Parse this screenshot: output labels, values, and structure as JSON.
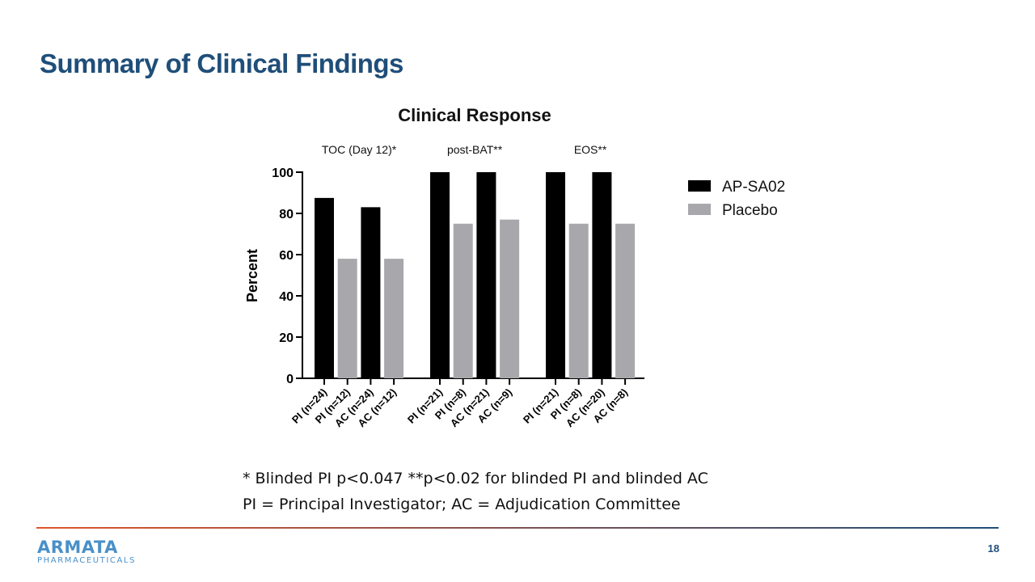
{
  "slide": {
    "title": "Summary of Clinical Findings",
    "page_number": "18",
    "footnote_1": "* Blinded PI p<0.047 **p<0.02 for blinded PI and blinded AC",
    "footnote_2": "PI = Principal Investigator; AC = Adjudication Committee"
  },
  "logo": {
    "name": "ARMATA",
    "subtitle": "PHARMACEUTICALS",
    "color": "#4A90C8"
  },
  "colors": {
    "title": "#1F4E79",
    "ap_sa02": "#000000",
    "placebo": "#A8A8AC",
    "divider_start": "#E0552B",
    "divider_end": "#1F4E79"
  },
  "chart_data": {
    "type": "bar",
    "title": "Clinical Response",
    "ylabel": "Percent",
    "xlabel": "",
    "ylim": [
      0,
      100
    ],
    "yticks": [
      0,
      20,
      40,
      60,
      80,
      100
    ],
    "grid": false,
    "legend_position": "right",
    "legend": [
      "AP-SA02",
      "Placebo"
    ],
    "groups": [
      {
        "label": "TOC (Day 12)*",
        "bars": [
          {
            "category": "PI (n=24)",
            "series": "AP-SA02",
            "value": 87.5
          },
          {
            "category": "PI (n=12)",
            "series": "Placebo",
            "value": 58
          },
          {
            "category": "AC (n=24)",
            "series": "AP-SA02",
            "value": 83
          },
          {
            "category": "AC (n=12)",
            "series": "Placebo",
            "value": 58
          }
        ]
      },
      {
        "label": "post-BAT**",
        "bars": [
          {
            "category": "PI (n=21)",
            "series": "AP-SA02",
            "value": 100
          },
          {
            "category": "PI (n=8)",
            "series": "Placebo",
            "value": 75
          },
          {
            "category": "AC (n=21)",
            "series": "AP-SA02",
            "value": 100
          },
          {
            "category": "AC (n=9)",
            "series": "Placebo",
            "value": 77
          }
        ]
      },
      {
        "label": "EOS**",
        "bars": [
          {
            "category": "PI (n=21)",
            "series": "AP-SA02",
            "value": 100
          },
          {
            "category": "PI (n=8)",
            "series": "Placebo",
            "value": 75
          },
          {
            "category": "AC (n=20)",
            "series": "AP-SA02",
            "value": 100
          },
          {
            "category": "AC (n=8)",
            "series": "Placebo",
            "value": 75
          }
        ]
      }
    ]
  }
}
